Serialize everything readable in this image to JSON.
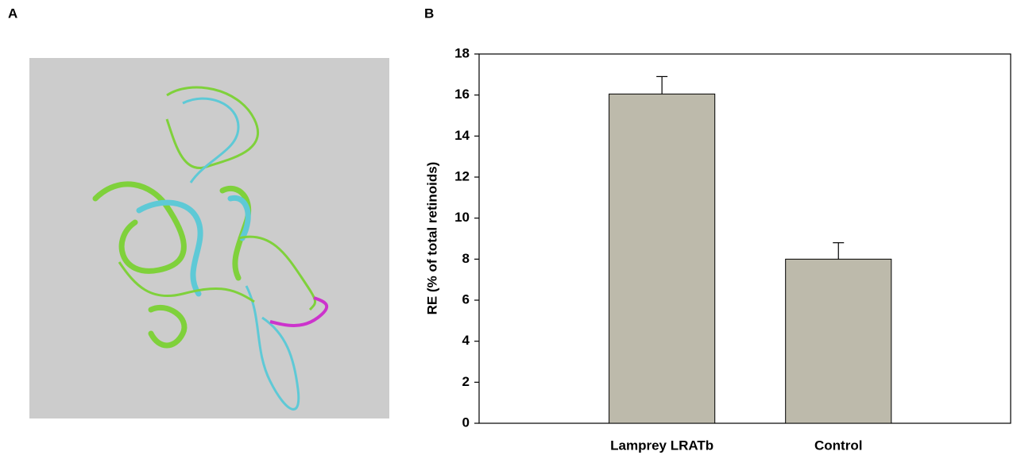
{
  "panels": [
    "A",
    "B"
  ],
  "chart_data": {
    "type": "bar",
    "y_label": "RE (% of total retinoids)",
    "categories": [
      "Lamprey LRATb",
      "Control"
    ],
    "values": [
      16.05,
      8.0
    ],
    "errors": [
      0.85,
      0.8
    ],
    "color": "#bdbaab",
    "ylim": [
      0,
      18
    ],
    "yticks": [
      0,
      2,
      4,
      6,
      8,
      10,
      12,
      14,
      16,
      18
    ],
    "grid": false
  }
}
